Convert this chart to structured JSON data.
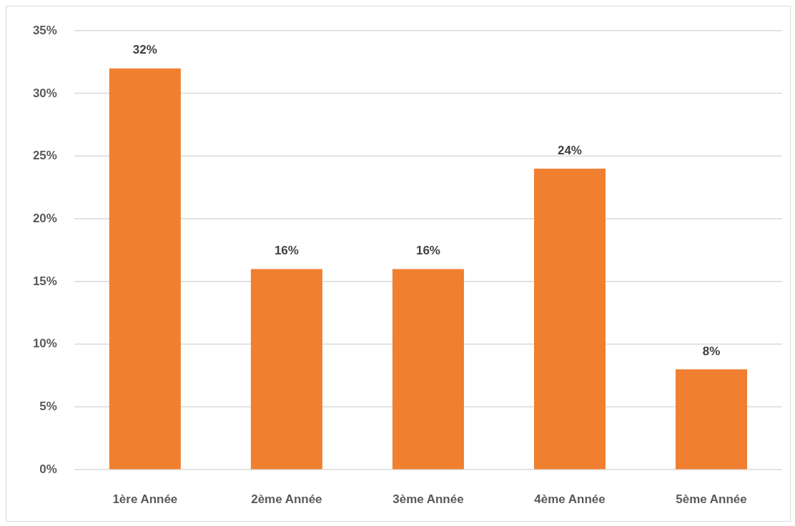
{
  "chart_data": {
    "type": "bar",
    "categories": [
      "1ère Année",
      "2ème Année",
      "3ème Année",
      "4ème Année",
      "5ème Année"
    ],
    "values": [
      32,
      16,
      16,
      24,
      8
    ],
    "color": "#f07f30",
    "ylim": [
      0,
      35
    ],
    "yticks": [
      {
        "value": 0,
        "label": "0%"
      },
      {
        "value": 5,
        "label": "5%"
      },
      {
        "value": 10,
        "label": "10%"
      },
      {
        "value": 15,
        "label": "15%"
      },
      {
        "value": 20,
        "label": "20%"
      },
      {
        "value": 25,
        "label": "25%"
      },
      {
        "value": 30,
        "label": "30%"
      },
      {
        "value": 35,
        "label": "35%"
      }
    ],
    "grid": "y",
    "value_labels": [
      "32%",
      "16%",
      "16%",
      "24%",
      "8%"
    ]
  }
}
